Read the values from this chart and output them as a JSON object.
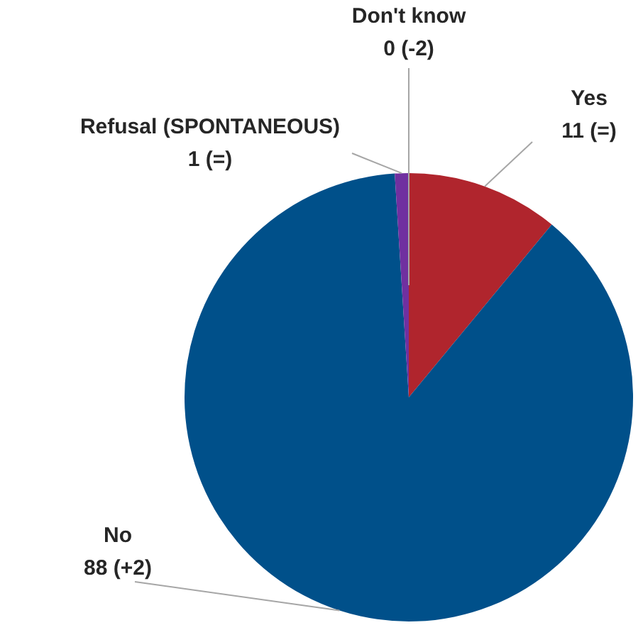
{
  "chart_data": {
    "type": "pie",
    "categories": [
      "Yes",
      "No",
      "Refusal (SPONTANEOUS)",
      "Don't know"
    ],
    "values": [
      11,
      88,
      1,
      0
    ],
    "value_labels": [
      "11 (=)",
      "88 (+2)",
      "1 (=)",
      "0 (-2)"
    ],
    "colors": [
      "#b0252d",
      "#00508a",
      "#7030a0",
      "#a6a6a6"
    ],
    "legend": false
  }
}
